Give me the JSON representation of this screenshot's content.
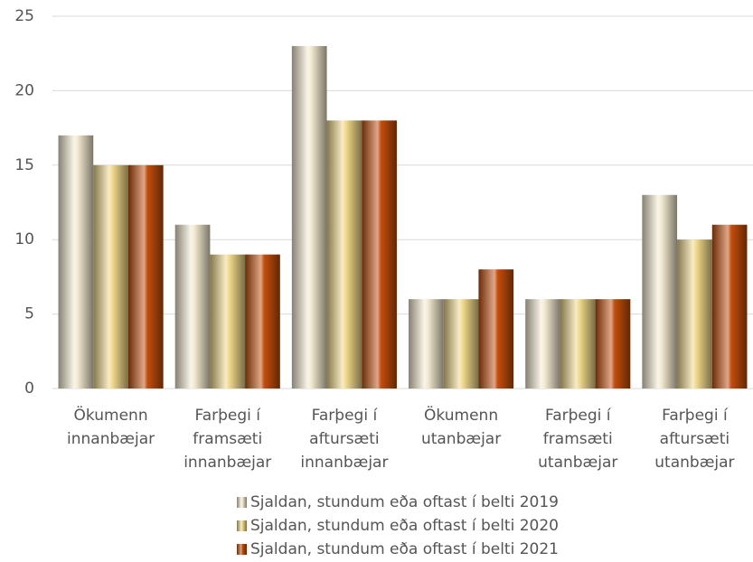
{
  "chart_data": {
    "type": "bar",
    "categories": [
      [
        "Ökumenn",
        "innanbæjar"
      ],
      [
        "Farþegi í",
        "framsæti",
        "innanbæjar"
      ],
      [
        "Farþegi í",
        "aftursæti",
        "innanbæjar"
      ],
      [
        "Ökumenn",
        "utanbæjar"
      ],
      [
        "Farþegi í",
        "framsæti",
        "utanbæjar"
      ],
      [
        "Farþegi í",
        "aftursæti",
        "utanbæjar"
      ]
    ],
    "series": [
      {
        "name": "Sjaldan, stundum eða oftast í belti 2019",
        "color": "#f3ead0",
        "values": [
          17,
          11,
          23,
          6,
          6,
          13
        ]
      },
      {
        "name": "Sjaldan, stundum eða oftast í belti 2020",
        "color": "#f0d98a",
        "values": [
          15,
          9,
          18,
          6,
          6,
          10
        ]
      },
      {
        "name": "Sjaldan, stundum eða oftast í belti 2021",
        "color": "#c24e0c",
        "values": [
          15,
          9,
          18,
          8,
          6,
          11
        ]
      }
    ],
    "ylim": [
      0,
      25
    ],
    "yticks": [
      0,
      5,
      10,
      15,
      20,
      25
    ],
    "grid": true,
    "legend": "bottom"
  }
}
